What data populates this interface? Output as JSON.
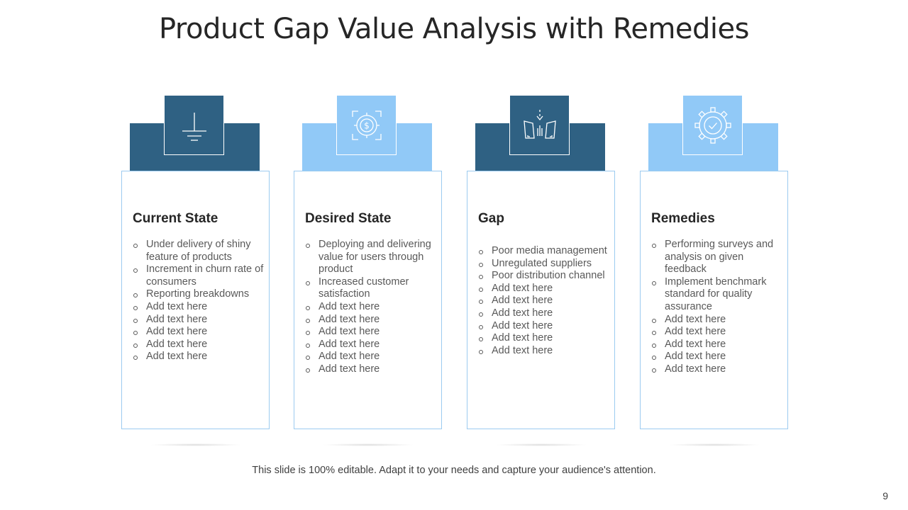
{
  "slide": {
    "title": "Product Gap Value Analysis with Remedies",
    "footer": "This slide is 100% editable. Adapt it to your needs and capture your audience's attention.",
    "page_number": "9"
  },
  "colors": {
    "dark_blue": "#2f6183",
    "light_blue": "#91c9f7",
    "card_border": "#9ccbf0"
  },
  "columns": [
    {
      "title": "Current State",
      "icon": "ground-symbol-icon",
      "color": "dark",
      "bullets": [
        "Under delivery of shiny feature of products",
        "Increment in churn rate of consumers",
        "Reporting breakdowns",
        "Add text here",
        "Add text here",
        "Add text here",
        "Add text here",
        "Add text here"
      ]
    },
    {
      "title": "Desired State",
      "icon": "dollar-target-icon",
      "color": "light",
      "bullets": [
        "Deploying and delivering value for users through product",
        "Increased customer satisfaction",
        "Add text here",
        "Add text here",
        "Add text here",
        "Add text here",
        "Add text here",
        "Add text here"
      ]
    },
    {
      "title": "Gap",
      "icon": "gap-arrow-icon",
      "color": "dark",
      "bullets": [
        "Poor media management",
        "Unregulated suppliers",
        "Poor distribution channel",
        "Add text here",
        "Add text here",
        "Add text here",
        "Add text here",
        "Add text here",
        "Add text here"
      ]
    },
    {
      "title": "Remedies",
      "icon": "gear-check-icon",
      "color": "light",
      "bullets": [
        "Performing surveys and analysis on given feedback",
        "Implement benchmark standard for quality assurance",
        "Add text here",
        "Add text here",
        "Add text here",
        "Add text here",
        "Add text here"
      ]
    }
  ]
}
